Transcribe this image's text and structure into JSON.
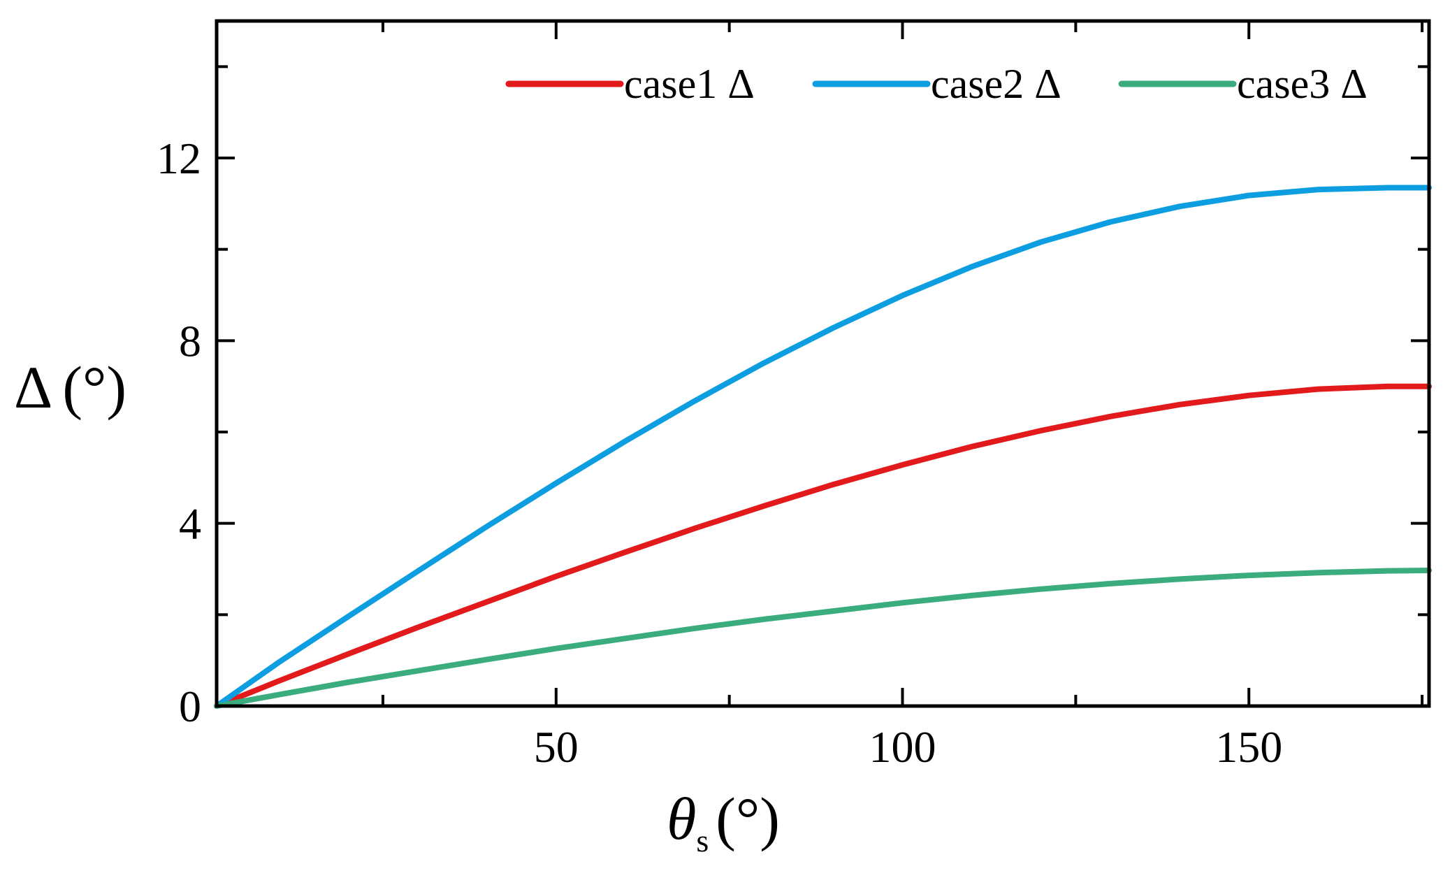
{
  "chart_data": {
    "type": "line",
    "title": "",
    "xlabel": "θs (°)",
    "xlabel_parts": {
      "symbol": "θ",
      "subscript": "s",
      "unit": "(°)"
    },
    "ylabel": "Δ (°)",
    "ylabel_parts": {
      "symbol": "Δ",
      "unit": "(°)"
    },
    "xlim": [
      1,
      176
    ],
    "ylim": [
      0,
      15
    ],
    "xticks": [
      50,
      100,
      150
    ],
    "xtick_labels": [
      "50",
      "100",
      "150"
    ],
    "xminor": [
      25,
      75,
      125,
      175
    ],
    "yticks": [
      0,
      4,
      8,
      12
    ],
    "ytick_labels": [
      "0",
      "4",
      "8",
      "12"
    ],
    "yminor": [
      2,
      6,
      10,
      14
    ],
    "grid": false,
    "legend_position": "top-right",
    "x": [
      1,
      10,
      20,
      30,
      40,
      50,
      60,
      70,
      80,
      90,
      100,
      110,
      120,
      130,
      140,
      150,
      160,
      170,
      176
    ],
    "series": [
      {
        "name": "case1  Δ",
        "color": "#e31a1c",
        "values": [
          0.0,
          0.55,
          1.14,
          1.72,
          2.28,
          2.84,
          3.37,
          3.89,
          4.38,
          4.85,
          5.28,
          5.68,
          6.03,
          6.34,
          6.6,
          6.8,
          6.94,
          7.0,
          7.0
        ]
      },
      {
        "name": "case2  Δ",
        "color": "#0c9ee0",
        "values": [
          0.0,
          0.96,
          1.96,
          2.95,
          3.93,
          4.88,
          5.8,
          6.68,
          7.51,
          8.28,
          8.99,
          9.62,
          10.16,
          10.6,
          10.94,
          11.18,
          11.31,
          11.35,
          11.35
        ]
      },
      {
        "name": "case3  Δ",
        "color": "#3aac7e",
        "values": [
          0.0,
          0.25,
          0.52,
          0.77,
          1.02,
          1.26,
          1.48,
          1.7,
          1.9,
          2.08,
          2.26,
          2.42,
          2.56,
          2.68,
          2.78,
          2.86,
          2.92,
          2.96,
          2.97
        ]
      }
    ]
  }
}
